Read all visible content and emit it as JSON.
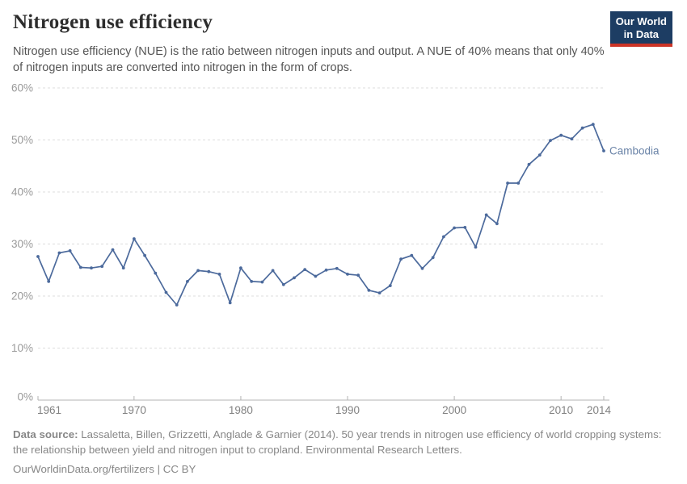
{
  "header": {
    "title": "Nitrogen use efficiency",
    "subtitle": "Nitrogen use efficiency (NUE) is the ratio between nitrogen inputs and output. A NUE of 40% means that only 40% of nitrogen inputs are converted into nitrogen in the form of crops."
  },
  "logo": {
    "line1": "Our World",
    "line2": "in Data",
    "bg_color": "#1d3d63",
    "accent_color": "#cc3426"
  },
  "chart_data": {
    "type": "line",
    "title": "Nitrogen use efficiency",
    "xlabel": "",
    "ylabel": "",
    "grid": "horizontal-dashed",
    "legend_position": "end-of-line-label",
    "xlim": [
      1961,
      2014
    ],
    "ylim": [
      0,
      60
    ],
    "x_tick_values": [
      1961,
      1970,
      1980,
      1990,
      2000,
      2010,
      2014
    ],
    "x_tick_labels": [
      "1961",
      "1970",
      "1980",
      "1990",
      "2000",
      "2010",
      "2014"
    ],
    "y_tick_values": [
      0,
      10,
      20,
      30,
      40,
      50,
      60
    ],
    "y_tick_labels": [
      "0%",
      "10%",
      "20%",
      "30%",
      "40%",
      "50%",
      "60%"
    ],
    "series": [
      {
        "name": "Cambodia",
        "color": "#4C6A9C",
        "label_color": "#6b84a8",
        "years": [
          1961,
          1962,
          1963,
          1964,
          1965,
          1966,
          1967,
          1968,
          1969,
          1970,
          1971,
          1972,
          1973,
          1974,
          1975,
          1976,
          1977,
          1978,
          1979,
          1980,
          1981,
          1982,
          1983,
          1984,
          1985,
          1986,
          1987,
          1988,
          1989,
          1990,
          1991,
          1992,
          1993,
          1994,
          1995,
          1996,
          1997,
          1998,
          1999,
          2000,
          2001,
          2002,
          2003,
          2004,
          2005,
          2006,
          2007,
          2008,
          2009,
          2010,
          2011,
          2012,
          2013,
          2014
        ],
        "values": [
          27.6,
          22.8,
          28.3,
          28.7,
          25.5,
          25.4,
          25.7,
          28.9,
          25.4,
          31.0,
          27.8,
          24.4,
          20.7,
          18.3,
          22.8,
          24.9,
          24.7,
          24.2,
          18.7,
          25.4,
          22.8,
          22.7,
          24.9,
          22.2,
          23.5,
          25.1,
          23.8,
          25.0,
          25.3,
          24.2,
          24.0,
          21.1,
          20.6,
          22.0,
          27.1,
          27.8,
          25.3,
          27.4,
          31.4,
          33.1,
          33.2,
          29.4,
          35.6,
          33.9,
          41.7,
          41.7,
          45.3,
          47.1,
          49.9,
          50.9,
          50.2,
          52.3,
          53.0,
          47.9
        ]
      }
    ],
    "colors": {
      "grid": "#dcdcdc",
      "axis": "#b3b3b3"
    }
  },
  "footer": {
    "source_label": "Data source:",
    "source_text": " Lassaletta, Billen, Grizzetti, Anglade & Garnier (2014). 50 year trends in nitrogen use efficiency of world cropping systems: the relationship between yield and nitrogen input to cropland. Environmental Research Letters.",
    "license_url": "OurWorldinData.org/fertilizers",
    "license_sep": " | ",
    "license_cc": "CC BY"
  }
}
